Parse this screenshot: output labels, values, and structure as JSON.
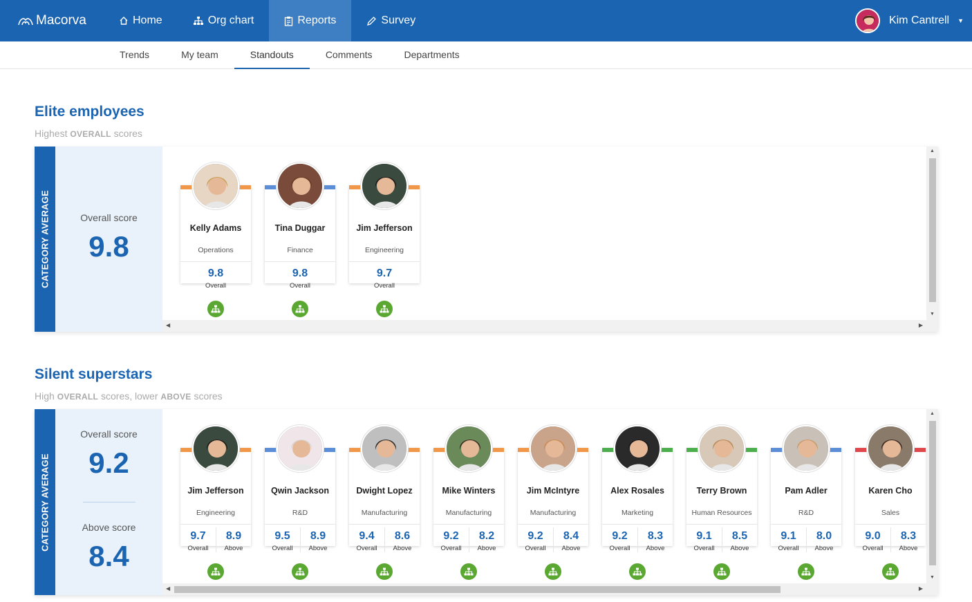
{
  "app": {
    "brand": "Macorva"
  },
  "nav": [
    {
      "label": "Home",
      "icon": "home-icon"
    },
    {
      "label": "Org chart",
      "icon": "org-chart-icon"
    },
    {
      "label": "Reports",
      "icon": "clipboard-icon",
      "active": true
    },
    {
      "label": "Survey",
      "icon": "pencil-icon"
    }
  ],
  "user": {
    "name": "Kim Cantrell"
  },
  "subnav": [
    {
      "label": "Trends"
    },
    {
      "label": "My team"
    },
    {
      "label": "Standouts",
      "active": true
    },
    {
      "label": "Comments"
    },
    {
      "label": "Departments"
    }
  ],
  "elite": {
    "title": "Elite employees",
    "subtitle_pre": "Highest ",
    "subtitle_bold": "OVERALL",
    "subtitle_post": " scores",
    "category_label": "CATEGORY AVERAGE",
    "overall_label": "Overall score",
    "overall_value": "9.8",
    "cards": [
      {
        "name": "Kelly Adams",
        "dept": "Operations",
        "overall": "9.8",
        "overall_label": "Overall",
        "bar": [
          "#f0974a",
          "#f0974a"
        ]
      },
      {
        "name": "Tina Duggar",
        "dept": "Finance",
        "overall": "9.8",
        "overall_label": "Overall",
        "bar": [
          "#5b8ed6",
          "#5b8ed6"
        ]
      },
      {
        "name": "Jim Jefferson",
        "dept": "Engineering",
        "overall": "9.7",
        "overall_label": "Overall",
        "bar": [
          "#f0974a",
          "#f0974a"
        ]
      }
    ]
  },
  "silent": {
    "title": "Silent superstars",
    "subtitle_pre": "High ",
    "subtitle_bold1": "OVERALL",
    "subtitle_mid": " scores, lower ",
    "subtitle_bold2": "ABOVE",
    "subtitle_post": " scores",
    "category_label": "CATEGORY AVERAGE",
    "overall_label": "Overall score",
    "overall_value": "9.2",
    "above_label": "Above score",
    "above_value": "8.4",
    "cards": [
      {
        "name": "Jim Jefferson",
        "dept": "Engineering",
        "overall": "9.7",
        "above": "8.9",
        "bar": [
          "#f0974a",
          "#f0974a"
        ]
      },
      {
        "name": "Qwin Jackson",
        "dept": "R&D",
        "overall": "9.5",
        "above": "8.9",
        "bar": [
          "#5b8ed6",
          "#5b8ed6"
        ]
      },
      {
        "name": "Dwight Lopez",
        "dept": "Manufacturing",
        "overall": "9.4",
        "above": "8.6",
        "bar": [
          "#f0974a",
          "#f0974a"
        ]
      },
      {
        "name": "Mike Winters",
        "dept": "Manufacturing",
        "overall": "9.2",
        "above": "8.2",
        "bar": [
          "#f0974a",
          "#f0974a"
        ]
      },
      {
        "name": "Jim McIntyre",
        "dept": "Manufacturing",
        "overall": "9.2",
        "above": "8.4",
        "bar": [
          "#f0974a",
          "#f0974a"
        ]
      },
      {
        "name": "Alex Rosales",
        "dept": "Marketing",
        "overall": "9.2",
        "above": "8.3",
        "bar": [
          "#4cae4c",
          "#4cae4c"
        ]
      },
      {
        "name": "Terry Brown",
        "dept": "Human Resources",
        "overall": "9.1",
        "above": "8.5",
        "bar": [
          "#4cae4c",
          "#4cae4c"
        ]
      },
      {
        "name": "Pam Adler",
        "dept": "R&D",
        "overall": "9.1",
        "above": "8.0",
        "bar": [
          "#5b8ed6",
          "#5b8ed6"
        ]
      },
      {
        "name": "Karen Cho",
        "dept": "Sales",
        "overall": "9.0",
        "above": "8.3",
        "bar": [
          "#e0474c",
          "#e0474c"
        ]
      }
    ],
    "overall_word": "Overall",
    "above_word": "Above"
  },
  "colors": {
    "primary": "#1b64b1",
    "green": "#5aa832",
    "panel_bg": "#e9f2fa"
  }
}
